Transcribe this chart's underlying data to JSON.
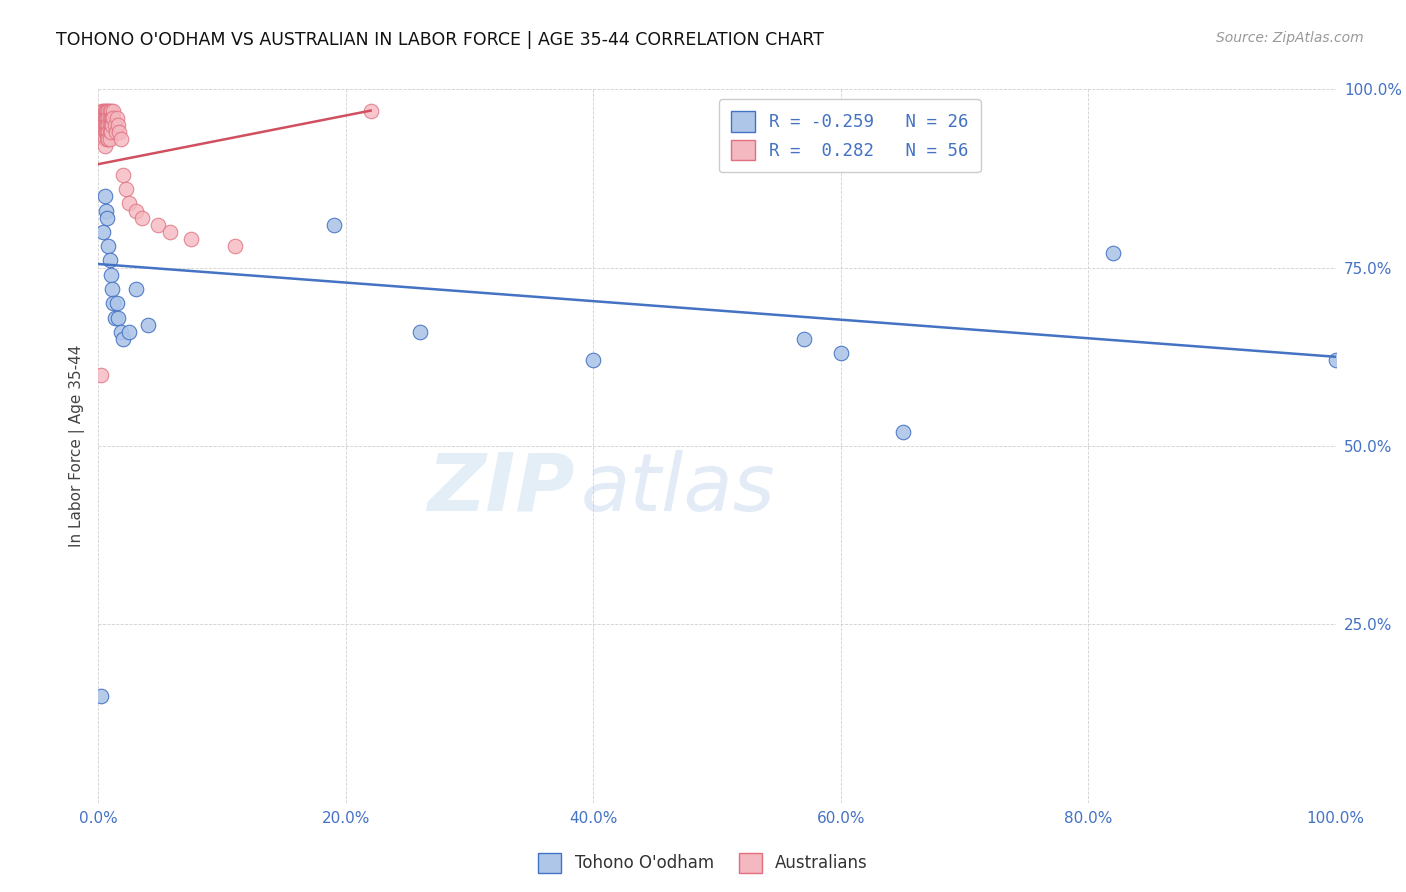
{
  "title": "TOHONO O'ODHAM VS AUSTRALIAN IN LABOR FORCE | AGE 35-44 CORRELATION CHART",
  "source": "Source: ZipAtlas.com",
  "ylabel": "In Labor Force | Age 35-44",
  "r_tohono": -0.259,
  "n_tohono": 26,
  "r_australian": 0.282,
  "n_australian": 56,
  "legend_labels": [
    "Tohono O'odham",
    "Australians"
  ],
  "tohono_color": "#aec6e8",
  "australian_color": "#f4b8c0",
  "tohono_edge_color": "#4472c4",
  "australian_edge_color": "#e07080",
  "tohono_line_color": "#4472c4",
  "australian_line_color": "#d05060",
  "background_color": "#ffffff",
  "watermark_zip": "ZIP",
  "watermark_atlas": "atlas",
  "xlim": [
    0.0,
    1.0
  ],
  "ylim": [
    0.0,
    1.0
  ],
  "x_tohono": [
    0.002,
    0.004,
    0.005,
    0.006,
    0.007,
    0.008,
    0.009,
    0.01,
    0.011,
    0.012,
    0.013,
    0.015,
    0.016,
    0.018,
    0.02,
    0.025,
    0.03,
    0.04,
    0.19,
    0.26,
    0.4,
    0.57,
    0.6,
    0.65,
    0.82,
    1.0
  ],
  "y_tohono": [
    0.15,
    0.8,
    0.85,
    0.83,
    0.82,
    0.78,
    0.76,
    0.74,
    0.72,
    0.7,
    0.68,
    0.7,
    0.68,
    0.66,
    0.65,
    0.66,
    0.72,
    0.67,
    0.81,
    0.66,
    0.62,
    0.65,
    0.63,
    0.52,
    0.77,
    0.62
  ],
  "x_australian": [
    0.002,
    0.003,
    0.003,
    0.003,
    0.004,
    0.004,
    0.004,
    0.005,
    0.005,
    0.005,
    0.005,
    0.005,
    0.005,
    0.006,
    0.006,
    0.006,
    0.006,
    0.007,
    0.007,
    0.007,
    0.007,
    0.007,
    0.008,
    0.008,
    0.008,
    0.008,
    0.008,
    0.009,
    0.009,
    0.009,
    0.009,
    0.009,
    0.01,
    0.01,
    0.01,
    0.01,
    0.011,
    0.011,
    0.012,
    0.012,
    0.013,
    0.014,
    0.015,
    0.016,
    0.017,
    0.018,
    0.02,
    0.022,
    0.025,
    0.03,
    0.035,
    0.048,
    0.058,
    0.075,
    0.11,
    0.22
  ],
  "y_australian": [
    0.6,
    0.97,
    0.96,
    0.95,
    0.97,
    0.96,
    0.95,
    0.97,
    0.96,
    0.95,
    0.94,
    0.93,
    0.92,
    0.97,
    0.96,
    0.95,
    0.94,
    0.97,
    0.96,
    0.95,
    0.94,
    0.93,
    0.97,
    0.96,
    0.95,
    0.94,
    0.93,
    0.97,
    0.96,
    0.95,
    0.94,
    0.93,
    0.97,
    0.96,
    0.95,
    0.94,
    0.96,
    0.95,
    0.97,
    0.96,
    0.95,
    0.94,
    0.96,
    0.95,
    0.94,
    0.93,
    0.88,
    0.86,
    0.84,
    0.83,
    0.82,
    0.81,
    0.8,
    0.79,
    0.78,
    0.97
  ],
  "trend_tohono_x0": 0.0,
  "trend_tohono_y0": 0.755,
  "trend_tohono_x1": 1.0,
  "trend_tohono_y1": 0.625,
  "trend_aus_x0": 0.0,
  "trend_aus_y0": 0.895,
  "trend_aus_x1": 0.22,
  "trend_aus_y1": 0.97
}
